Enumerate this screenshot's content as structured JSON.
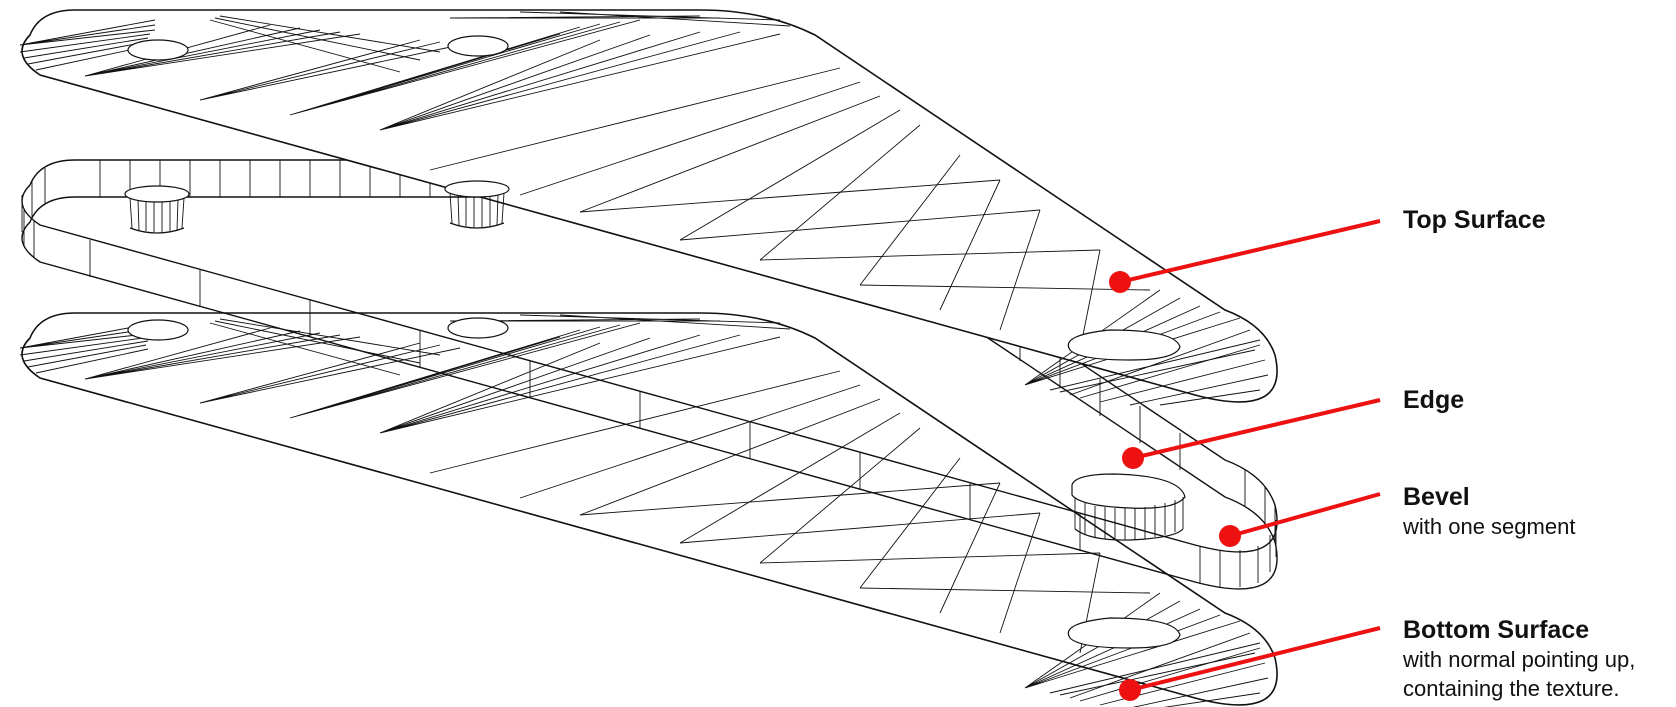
{
  "labels": {
    "top": {
      "title": "Top Surface"
    },
    "edge": {
      "title": "Edge"
    },
    "bevel": {
      "title": "Bevel",
      "subtitle": "with one segment"
    },
    "bottom": {
      "title": "Bottom Surface",
      "subtitle_1": "with normal pointing up,",
      "subtitle_2": "containing the texture."
    }
  },
  "colors": {
    "callout": "#ee1111",
    "line": "#111111",
    "background": "#ffffff"
  }
}
